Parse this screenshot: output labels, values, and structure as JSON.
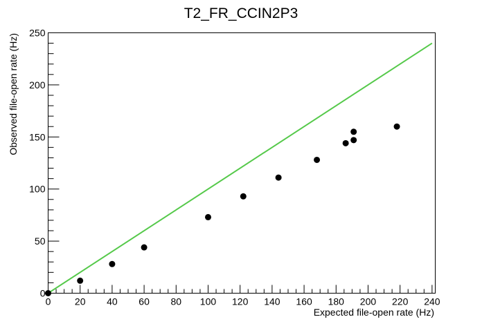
{
  "chart_data": {
    "type": "scatter",
    "title": "T2_FR_CCIN2P3",
    "xlabel": "Expected file-open rate (Hz)",
    "ylabel": "Observed file-open rate (Hz)",
    "xlim": [
      0,
      242
    ],
    "ylim": [
      0,
      250
    ],
    "x_ticks": [
      0,
      20,
      40,
      60,
      80,
      100,
      120,
      140,
      160,
      180,
      200,
      220,
      240
    ],
    "y_ticks": [
      0,
      50,
      100,
      150,
      200,
      250
    ],
    "grid": false,
    "points": [
      {
        "x": 0,
        "y": 0
      },
      {
        "x": 20,
        "y": 12
      },
      {
        "x": 40,
        "y": 28
      },
      {
        "x": 60,
        "y": 44
      },
      {
        "x": 100,
        "y": 73
      },
      {
        "x": 122,
        "y": 93
      },
      {
        "x": 144,
        "y": 111
      },
      {
        "x": 168,
        "y": 128
      },
      {
        "x": 186,
        "y": 144
      },
      {
        "x": 191,
        "y": 147
      },
      {
        "x": 191,
        "y": 155
      },
      {
        "x": 218,
        "y": 160
      }
    ],
    "reference_line": {
      "x": [
        0,
        240
      ],
      "y": [
        0,
        240
      ],
      "color": "#55c94a"
    },
    "marker_color": "#000000"
  }
}
